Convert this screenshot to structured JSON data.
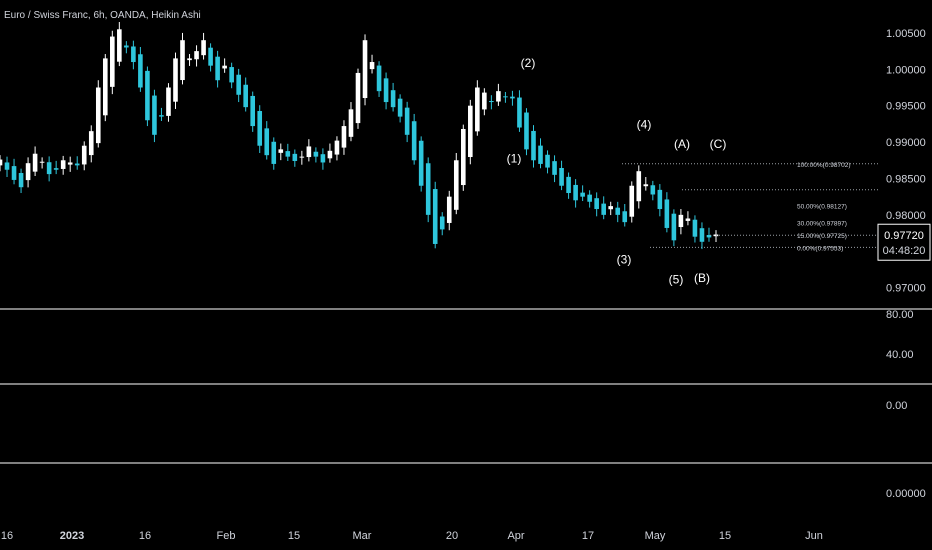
{
  "header": {
    "title": "Euro / Swiss Franc, 6h, OANDA, Heikin Ashi"
  },
  "colors": {
    "background": "#000000",
    "bull": "#ffffff",
    "bear": "#2ec6dc",
    "axis_text": "#d1d4dc",
    "separator": "#ffffff",
    "fib_line": "#9aa0a6"
  },
  "chart_data": [
    {
      "type": "candlestick",
      "title": "Euro / Swiss Franc, 6h, OANDA, Heikin Ashi",
      "x_ticks": [
        "16",
        "2023",
        "16",
        "Feb",
        "15",
        "Mar",
        "20",
        "Apr",
        "17",
        "May",
        "15",
        "Jun"
      ],
      "y_ticks": [
        "1.00500",
        "1.00000",
        "0.99500",
        "0.99000",
        "0.98500",
        "0.98000",
        "0.97000"
      ],
      "ylim": [
        0.9683,
        1.0076
      ],
      "price_close": [
        0.9876,
        0.9862,
        0.9848,
        0.9838,
        0.9871,
        0.9884,
        0.9873,
        0.9856,
        0.9862,
        0.9875,
        0.9872,
        0.9868,
        0.9895,
        0.9915,
        0.9975,
        1.0015,
        1.0045,
        1.0055,
        1.003,
        1.001,
        0.9975,
        0.993,
        0.991,
        0.9935,
        0.9975,
        1.0015,
        1.004,
        1.0015,
        1.0025,
        1.004,
        1.0005,
        0.9985,
        1.0005,
        0.9982,
        0.9965,
        0.9948,
        0.9922,
        0.9895,
        0.9882,
        0.987,
        0.989,
        0.988,
        0.9874,
        0.988,
        0.9894,
        0.988,
        0.9872,
        0.9888,
        0.9902,
        0.9922,
        0.9945,
        0.9995,
        1.004,
        1.001,
        0.997,
        0.9955,
        0.9948,
        0.9935,
        0.991,
        0.9875,
        0.984,
        0.98,
        0.976,
        0.978,
        0.9825,
        0.9875,
        0.9918,
        0.995,
        0.9975,
        0.9968,
        0.9955,
        0.997,
        0.9962,
        0.996,
        0.992,
        0.989,
        0.9875,
        0.987,
        0.9865,
        0.9855,
        0.984,
        0.983,
        0.982,
        0.9825,
        0.9818,
        0.9808,
        0.98,
        0.9812,
        0.98,
        0.979,
        0.984,
        0.986,
        0.9842,
        0.9828,
        0.9808,
        0.9782,
        0.9765,
        0.98,
        0.9795,
        0.977,
        0.9763,
        0.9769,
        0.9773
      ],
      "fib_levels": [
        {
          "label": "100.00%(0.98702)",
          "price": 0.98702
        },
        {
          "label": "50.00%(0.98127)",
          "price": 0.98127
        },
        {
          "label": "30.00%(0.97897)",
          "price": 0.97897
        },
        {
          "label": "15.00%(0.97725)",
          "price": 0.97725
        },
        {
          "label": "0.00%(0.97553)",
          "price": 0.97553
        }
      ],
      "wave_labels": [
        {
          "text": "(2)",
          "price": 1.0003
        },
        {
          "text": "(1)",
          "price": 0.9872
        },
        {
          "text": "(4)",
          "price": 0.9919
        },
        {
          "text": "(3)",
          "price": 0.9733
        },
        {
          "text": "(A)",
          "price": 0.9892
        },
        {
          "text": "(C)",
          "price": 0.9892
        },
        {
          "text": "(5)",
          "price": 0.9706
        },
        {
          "text": "(B)",
          "price": 0.9708
        }
      ],
      "last_price": "0.97720",
      "countdown": "04:48:20"
    },
    {
      "type": "indicator-pane",
      "y_ticks": [
        "80.00",
        "40.00"
      ]
    },
    {
      "type": "indicator-pane",
      "y_ticks": [
        "0.00"
      ]
    },
    {
      "type": "indicator-pane",
      "y_ticks": [
        "0.00000"
      ]
    }
  ]
}
